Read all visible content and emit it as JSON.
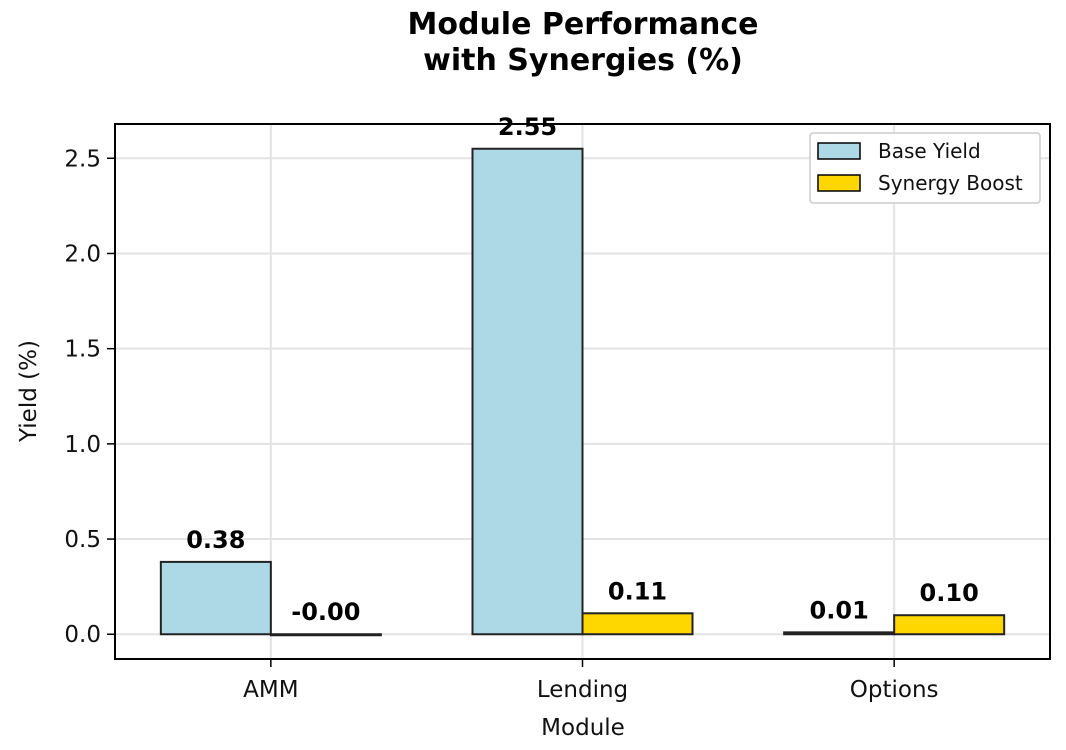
{
  "chart_data": {
    "type": "bar",
    "title": [
      "Module Performance",
      "with Synergies (%)"
    ],
    "xlabel": "Module",
    "ylabel": "Yield (%)",
    "categories": [
      "AMM",
      "Lending",
      "Options"
    ],
    "ylim": [
      -0.13,
      2.68
    ],
    "yticks": [
      0.0,
      0.5,
      1.0,
      1.5,
      2.0,
      2.5
    ],
    "ytick_labels": [
      "0.0",
      "0.5",
      "1.0",
      "1.5",
      "2.0",
      "2.5"
    ],
    "grid": true,
    "legend_position": "top-right",
    "series": [
      {
        "name": "Base Yield",
        "color": "#add8e6",
        "values": [
          0.38,
          2.55,
          0.01
        ],
        "labels": [
          "0.38",
          "2.55",
          "0.01"
        ]
      },
      {
        "name": "Synergy Boost",
        "color": "#ffd700",
        "values": [
          -0.0,
          0.11,
          0.1
        ],
        "labels": [
          "-0.00",
          "0.11",
          "0.10"
        ]
      }
    ]
  }
}
